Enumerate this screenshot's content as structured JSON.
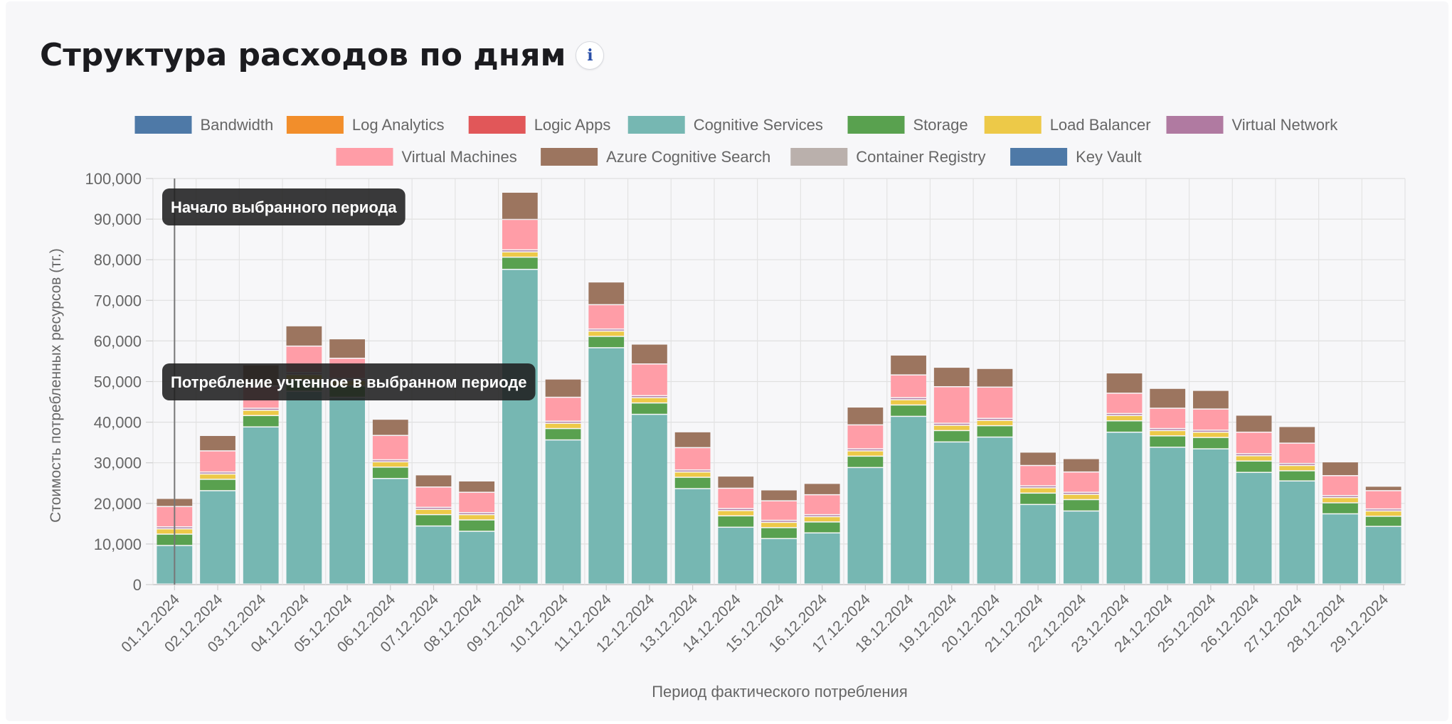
{
  "header": {
    "title": "Структура расходов по дням",
    "info_icon": "info-icon",
    "info_glyph": "i"
  },
  "chart_data": {
    "type": "bar",
    "stacked": true,
    "title": "Структура расходов по дням",
    "xlabel": "Период фактического потребления",
    "ylabel": "Стоимость потребленных ресурсов (тг.)",
    "ylim": [
      0,
      100000
    ],
    "yticks": [
      "0",
      "10,000",
      "20,000",
      "30,000",
      "40,000",
      "50,000",
      "60,000",
      "70,000",
      "80,000",
      "90,000",
      "100,000"
    ],
    "legend_position": "top",
    "categories": [
      "01.12.2024",
      "02.12.2024",
      "03.12.2024",
      "04.12.2024",
      "05.12.2024",
      "06.12.2024",
      "07.12.2024",
      "08.12.2024",
      "09.12.2024",
      "10.12.2024",
      "11.12.2024",
      "12.12.2024",
      "13.12.2024",
      "14.12.2024",
      "15.12.2024",
      "16.12.2024",
      "17.12.2024",
      "18.12.2024",
      "19.12.2024",
      "20.12.2024",
      "21.12.2024",
      "22.12.2024",
      "23.12.2024",
      "24.12.2024",
      "25.12.2024",
      "26.12.2024",
      "27.12.2024",
      "28.12.2024",
      "29.12.2024"
    ],
    "series": [
      {
        "name": "Bandwidth",
        "color": "#4e79a7",
        "values": [
          0,
          0,
          0,
          0,
          0,
          0,
          0,
          0,
          0,
          0,
          0,
          0,
          0,
          0,
          0,
          0,
          0,
          0,
          0,
          0,
          0,
          0,
          0,
          0,
          0,
          0,
          0,
          0,
          0
        ]
      },
      {
        "name": "Log Analytics",
        "color": "#f28e2b",
        "values": [
          0,
          0,
          0,
          0,
          0,
          0,
          0,
          0,
          0,
          0,
          0,
          0,
          0,
          0,
          0,
          0,
          0,
          0,
          0,
          0,
          0,
          0,
          0,
          0,
          0,
          0,
          0,
          0,
          0
        ]
      },
      {
        "name": "Logic Apps",
        "color": "#e15759",
        "values": [
          0,
          0,
          0,
          0,
          0,
          0,
          0,
          0,
          0,
          0,
          0,
          0,
          0,
          0,
          0,
          0,
          0,
          0,
          0,
          0,
          0,
          0,
          0,
          0,
          0,
          0,
          0,
          0,
          0
        ]
      },
      {
        "name": "Cognitive Services",
        "color": "#76b7b2",
        "values": [
          9500,
          23000,
          38700,
          47500,
          46000,
          26000,
          14300,
          13000,
          77500,
          35500,
          58200,
          41800,
          23500,
          14000,
          11200,
          12600,
          28700,
          41300,
          35000,
          36200,
          19600,
          18000,
          37400,
          33700,
          33300,
          27500,
          25400,
          17300,
          14200
        ]
      },
      {
        "name": "Storage",
        "color": "#59a14f",
        "values": [
          2800,
          2800,
          2800,
          2800,
          2800,
          2800,
          2800,
          2800,
          3000,
          2800,
          2800,
          2800,
          2800,
          2800,
          2700,
          2700,
          2800,
          2800,
          2800,
          2800,
          2800,
          2800,
          2800,
          2800,
          2800,
          2800,
          2500,
          2700,
          2500
        ]
      },
      {
        "name": "Load Balancer",
        "color": "#edc948",
        "values": [
          1300,
          1300,
          1300,
          1300,
          1300,
          1300,
          1300,
          1300,
          1300,
          1300,
          1300,
          1300,
          1300,
          1300,
          1300,
          1300,
          1300,
          1300,
          1300,
          1300,
          1300,
          1300,
          1300,
          1300,
          1300,
          1300,
          1300,
          1300,
          1300
        ]
      },
      {
        "name": "Virtual Network",
        "color": "#b07aa1",
        "values": [
          500,
          500,
          500,
          500,
          500,
          500,
          500,
          500,
          500,
          500,
          500,
          500,
          500,
          500,
          500,
          500,
          500,
          500,
          500,
          500,
          500,
          500,
          500,
          500,
          500,
          500,
          500,
          500,
          500
        ]
      },
      {
        "name": "Virtual Machines",
        "color": "#ff9da7",
        "values": [
          5000,
          5200,
          5500,
          6500,
          5000,
          6000,
          5000,
          5000,
          7500,
          5900,
          6000,
          7800,
          5500,
          5000,
          4800,
          4900,
          5900,
          5600,
          9000,
          7700,
          5000,
          5000,
          5000,
          5000,
          5200,
          5300,
          5000,
          4900,
          4500
        ]
      },
      {
        "name": "Azure Cognitive Search",
        "color": "#9c755f",
        "values": [
          2000,
          3800,
          5200,
          5000,
          4800,
          4000,
          3000,
          2800,
          6700,
          4500,
          5600,
          4900,
          3900,
          3000,
          2700,
          2800,
          4400,
          4900,
          4800,
          4600,
          3300,
          3300,
          5000,
          4900,
          4600,
          4200,
          4100,
          3400,
          1100
        ]
      },
      {
        "name": "Container Registry",
        "color": "#bab0ac",
        "values": [
          0,
          0,
          0,
          0,
          0,
          0,
          0,
          0,
          0,
          0,
          0,
          0,
          0,
          0,
          0,
          0,
          0,
          0,
          0,
          0,
          0,
          0,
          0,
          0,
          0,
          0,
          0,
          0,
          0
        ]
      },
      {
        "name": "Key Vault",
        "color": "#4e79a7",
        "values": [
          0,
          0,
          0,
          0,
          0,
          0,
          0,
          0,
          0,
          0,
          0,
          0,
          0,
          0,
          0,
          0,
          0,
          0,
          0,
          0,
          0,
          0,
          0,
          0,
          0,
          0,
          0,
          0,
          0
        ]
      }
    ],
    "annotations": {
      "period_start_line_category": "01.12.2024",
      "period_start_label": "Начало выбранного периода",
      "period_consumption_label": "Потребление учтенное в выбранном периоде"
    }
  }
}
